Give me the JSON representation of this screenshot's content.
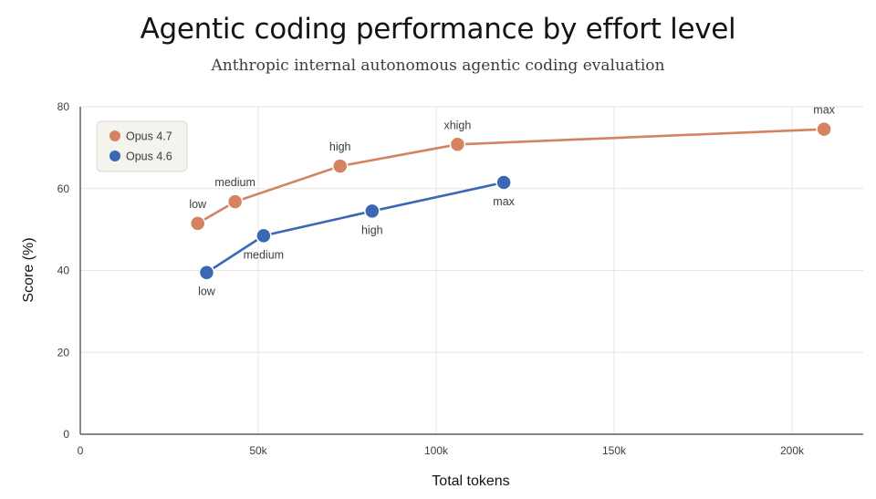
{
  "chart_data": {
    "type": "line",
    "title": "Agentic coding performance by effort level",
    "subtitle": "Anthropic internal autonomous agentic coding evaluation",
    "xlabel": "Total tokens",
    "ylabel": "Score (%)",
    "xlim": [
      0,
      220000
    ],
    "ylim": [
      0,
      80
    ],
    "xticks": [
      0,
      50000,
      100000,
      150000,
      200000
    ],
    "xtick_labels": [
      "0",
      "50k",
      "100k",
      "150k",
      "200k"
    ],
    "yticks": [
      0,
      20,
      40,
      60,
      80
    ],
    "ytick_labels": [
      "0",
      "20",
      "40",
      "60",
      "80"
    ],
    "grid": true,
    "legend_position": "top-left",
    "series": [
      {
        "name": "Opus 4.7",
        "color": "#d4825f",
        "label_placement": "above",
        "points": [
          {
            "x": 33000,
            "y": 51.5,
            "label": "low"
          },
          {
            "x": 43500,
            "y": 56.8,
            "label": "medium"
          },
          {
            "x": 73000,
            "y": 65.5,
            "label": "high"
          },
          {
            "x": 106000,
            "y": 70.8,
            "label": "xhigh"
          },
          {
            "x": 209000,
            "y": 74.5,
            "label": "max"
          }
        ]
      },
      {
        "name": "Opus 4.6",
        "color": "#3a68b3",
        "label_placement": "below",
        "points": [
          {
            "x": 35500,
            "y": 39.5,
            "label": "low"
          },
          {
            "x": 51500,
            "y": 48.5,
            "label": "medium"
          },
          {
            "x": 82000,
            "y": 54.5,
            "label": "high"
          },
          {
            "x": 119000,
            "y": 61.5,
            "label": "max"
          }
        ]
      }
    ]
  }
}
